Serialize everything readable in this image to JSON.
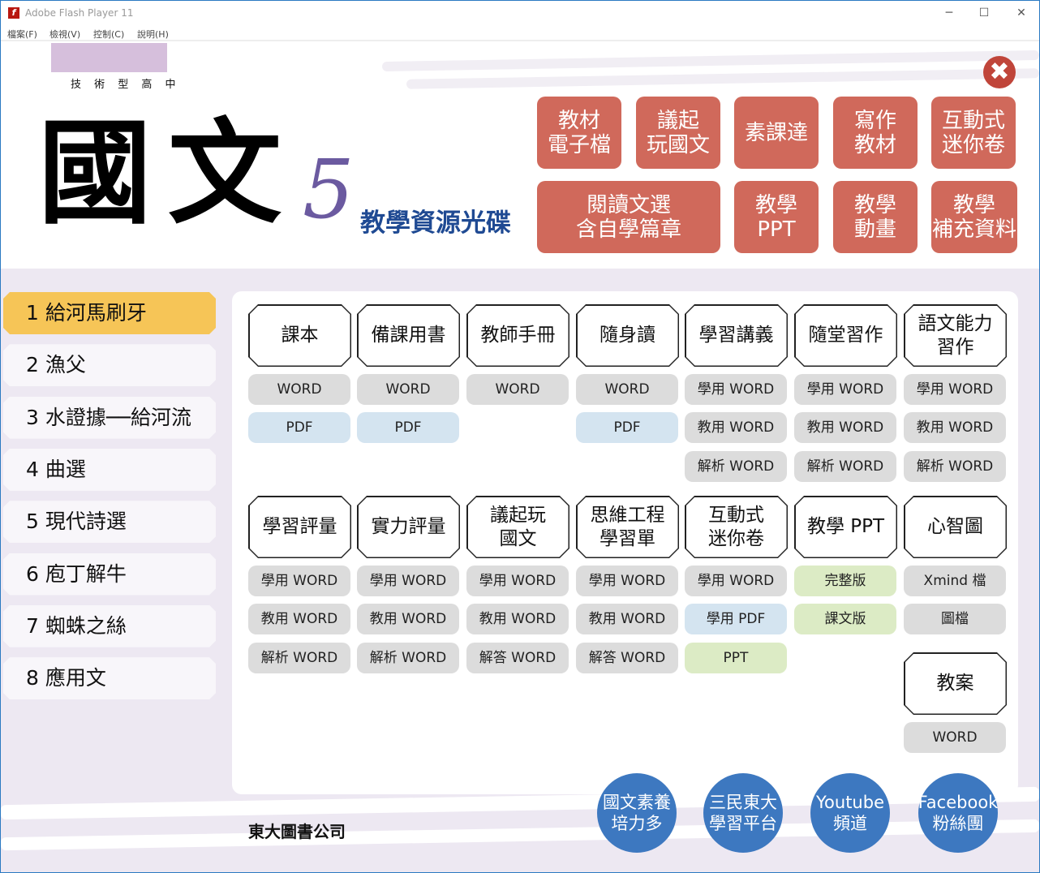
{
  "window": {
    "title": "Adobe Flash Player 11",
    "minimize": "─",
    "maximize": "☐",
    "close": "✕"
  },
  "menu": [
    "檔案(F)",
    "檢視(V)",
    "控制(C)",
    "說明(H)"
  ],
  "header": {
    "subtitle": "技 術 型 高 中",
    "title": "國文",
    "volume": "5",
    "disc": "教學資源光碟",
    "close_icon": "✖"
  },
  "top_buttons": [
    "教材\n電子檔",
    "議起\n玩國文",
    "素課達",
    "寫作\n教材",
    "互動式\n迷你卷",
    "閱讀文選\n含自學篇章",
    "教學\nPPT",
    "教學\n動畫",
    "教學\n補充資料"
  ],
  "lessons": [
    {
      "label": "1 給河馬刷牙",
      "active": true
    },
    {
      "label": "2 漁父"
    },
    {
      "label": "3 水證據──給河流"
    },
    {
      "label": "4 曲選"
    },
    {
      "label": "5 現代詩選"
    },
    {
      "label": "6 庖丁解牛"
    },
    {
      "label": "7 蜘蛛之絲"
    },
    {
      "label": "8 應用文"
    }
  ],
  "groups": [
    {
      "columns": [
        {
          "header": "課本",
          "items": [
            {
              "label": "WORD",
              "color": "gray"
            },
            {
              "label": "PDF",
              "color": "blue"
            }
          ]
        },
        {
          "header": "備課用書",
          "items": [
            {
              "label": "WORD",
              "color": "gray"
            },
            {
              "label": "PDF",
              "color": "blue"
            }
          ]
        },
        {
          "header": "教師手冊",
          "items": [
            {
              "label": "WORD",
              "color": "gray"
            }
          ]
        },
        {
          "header": "隨身讀",
          "items": [
            {
              "label": "WORD",
              "color": "gray"
            },
            {
              "label": "PDF",
              "color": "blue"
            }
          ]
        },
        {
          "header": "學習講義",
          "items": [
            {
              "label": "學用 WORD",
              "color": "gray"
            },
            {
              "label": "教用 WORD",
              "color": "gray"
            },
            {
              "label": "解析 WORD",
              "color": "gray"
            }
          ]
        },
        {
          "header": "隨堂習作",
          "items": [
            {
              "label": "學用 WORD",
              "color": "gray"
            },
            {
              "label": "教用 WORD",
              "color": "gray"
            },
            {
              "label": "解析 WORD",
              "color": "gray"
            }
          ]
        },
        {
          "header": "語文能力\n習作",
          "items": [
            {
              "label": "學用 WORD",
              "color": "gray"
            },
            {
              "label": "教用 WORD",
              "color": "gray"
            },
            {
              "label": "解析 WORD",
              "color": "gray"
            }
          ]
        }
      ]
    },
    {
      "columns": [
        {
          "header": "學習評量",
          "items": [
            {
              "label": "學用 WORD",
              "color": "gray"
            },
            {
              "label": "教用 WORD",
              "color": "gray"
            },
            {
              "label": "解析 WORD",
              "color": "gray"
            }
          ]
        },
        {
          "header": "實力評量",
          "items": [
            {
              "label": "學用 WORD",
              "color": "gray"
            },
            {
              "label": "教用 WORD",
              "color": "gray"
            },
            {
              "label": "解析 WORD",
              "color": "gray"
            }
          ]
        },
        {
          "header": "議起玩\n國文",
          "items": [
            {
              "label": "學用 WORD",
              "color": "gray"
            },
            {
              "label": "教用 WORD",
              "color": "gray"
            },
            {
              "label": "解答 WORD",
              "color": "gray"
            }
          ]
        },
        {
          "header": "思維工程\n學習單",
          "items": [
            {
              "label": "學用 WORD",
              "color": "gray"
            },
            {
              "label": "教用 WORD",
              "color": "gray"
            },
            {
              "label": "解答 WORD",
              "color": "gray"
            }
          ]
        },
        {
          "header": "互動式\n迷你卷",
          "items": [
            {
              "label": "學用 WORD",
              "color": "gray"
            },
            {
              "label": "學用 PDF",
              "color": "blue"
            },
            {
              "label": "PPT",
              "color": "green"
            }
          ]
        },
        {
          "header": "教學 PPT",
          "items": [
            {
              "label": "完整版",
              "color": "green"
            },
            {
              "label": "課文版",
              "color": "green"
            }
          ]
        },
        {
          "header": "心智圖",
          "items": [
            {
              "label": "Xmind 檔",
              "color": "gray"
            },
            {
              "label": "圖檔",
              "color": "gray"
            }
          ],
          "sub": {
            "header": "教案",
            "items": [
              {
                "label": "WORD",
                "color": "gray"
              }
            ]
          }
        }
      ]
    }
  ],
  "footer": {
    "publisher": "東大圖書公司",
    "links": [
      "國文素養\n培力多",
      "三民東大\n學習平台",
      "Youtube\n頻道",
      "Facebook\n粉絲團"
    ]
  },
  "colors": {
    "accent_red": "#d0695b",
    "active_lesson": "#f6c557",
    "link_blue": "#3d78c0",
    "background": "#ede8f2"
  }
}
